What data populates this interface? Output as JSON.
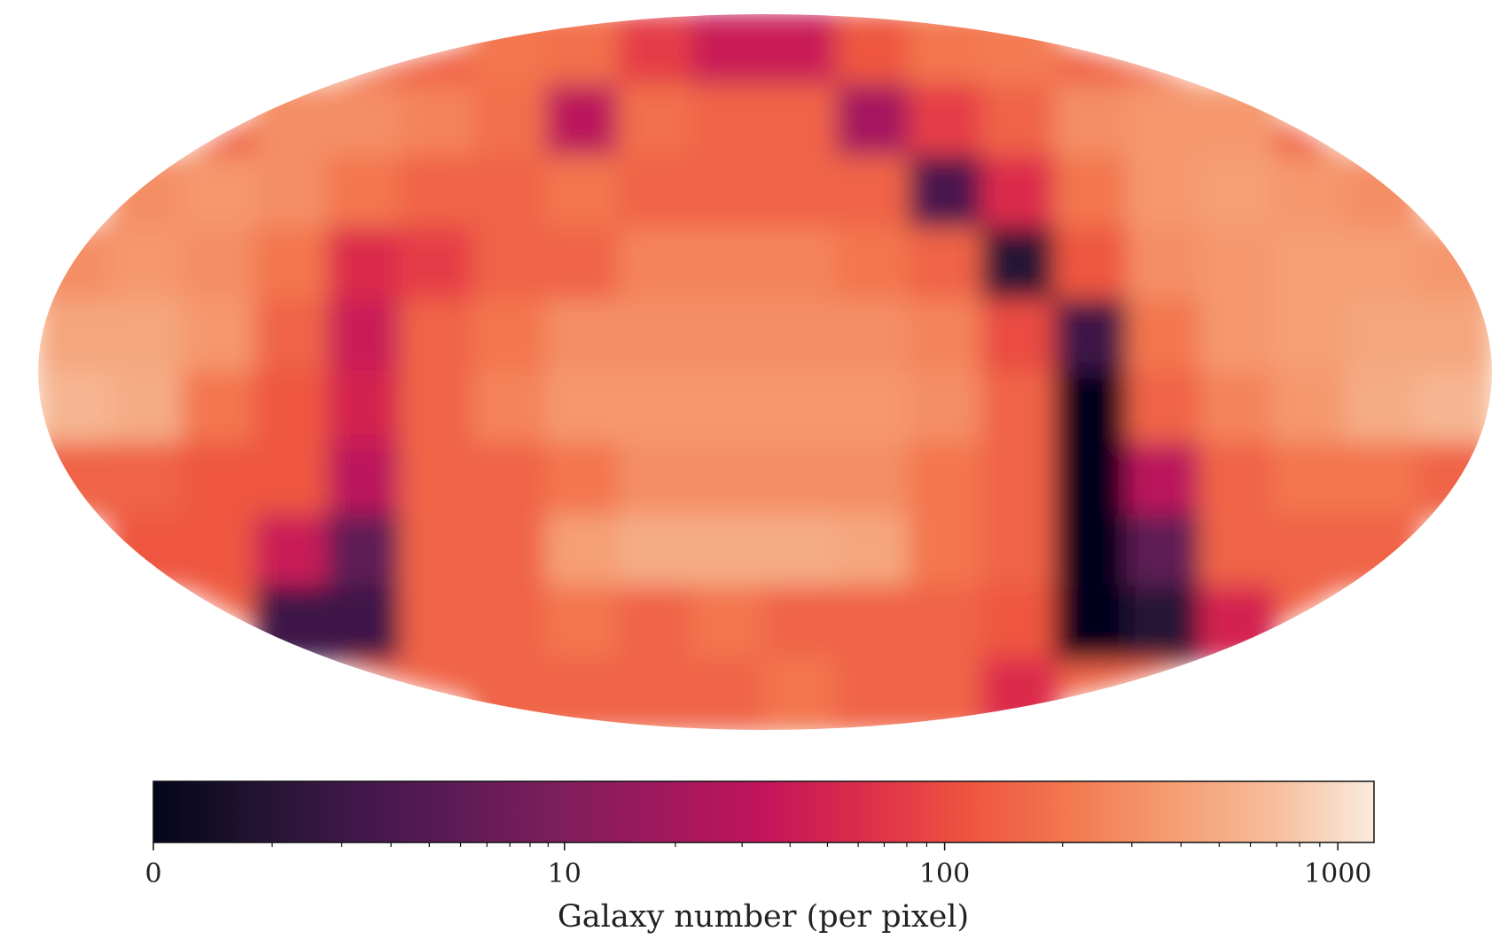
{
  "chart_data": {
    "type": "skymap",
    "projection": "mollweide",
    "values": [
      [
        null,
        null,
        null,
        null,
        null,
        null,
        200,
        180,
        80,
        40,
        40,
        120,
        200,
        220,
        null,
        null,
        null,
        null,
        null,
        null
      ],
      [
        null,
        null,
        null,
        300,
        300,
        250,
        180,
        30,
        180,
        150,
        150,
        20,
        80,
        150,
        300,
        350,
        350,
        null,
        null,
        null
      ],
      [
        null,
        300,
        350,
        300,
        200,
        150,
        150,
        200,
        150,
        150,
        150,
        150,
        3,
        60,
        200,
        350,
        400,
        350,
        300,
        null
      ],
      [
        300,
        350,
        300,
        200,
        60,
        80,
        150,
        150,
        250,
        250,
        250,
        200,
        150,
        1,
        120,
        300,
        350,
        400,
        400,
        350
      ],
      [
        450,
        450,
        350,
        150,
        40,
        150,
        200,
        300,
        300,
        300,
        300,
        300,
        250,
        100,
        2,
        200,
        350,
        400,
        450,
        450
      ],
      [
        600,
        500,
        200,
        120,
        50,
        150,
        250,
        350,
        350,
        350,
        350,
        350,
        300,
        150,
        0,
        150,
        250,
        350,
        500,
        600
      ],
      [
        150,
        150,
        120,
        120,
        30,
        150,
        150,
        200,
        300,
        300,
        300,
        300,
        200,
        150,
        0,
        30,
        150,
        200,
        200,
        150
      ],
      [
        null,
        120,
        120,
        40,
        5,
        150,
        150,
        400,
        500,
        500,
        500,
        450,
        200,
        150,
        0,
        5,
        150,
        150,
        150,
        null
      ],
      [
        null,
        null,
        null,
        2,
        2,
        150,
        150,
        200,
        150,
        200,
        150,
        150,
        150,
        120,
        0,
        1,
        50,
        null,
        null,
        null
      ],
      [
        null,
        null,
        null,
        null,
        null,
        null,
        150,
        150,
        150,
        150,
        200,
        150,
        150,
        60,
        null,
        null,
        null,
        null,
        null,
        null
      ]
    ],
    "colormap": [
      "#03051a",
      "#221331",
      "#40184a",
      "#5e1b55",
      "#7e1e5c",
      "#a0185e",
      "#c2145b",
      "#de2e4a",
      "#ee5440",
      "#f3784f",
      "#f59c72",
      "#f6bd9b",
      "#faebdd"
    ],
    "color_scale": "log1p",
    "clim": [
      0,
      1235
    ],
    "cticks": [
      0,
      10,
      100,
      1000
    ],
    "cminorticks": [
      1,
      2,
      3,
      4,
      5,
      6,
      7,
      8,
      9,
      20,
      30,
      40,
      50,
      60,
      70,
      80,
      90,
      200,
      300,
      400,
      500,
      600,
      700,
      800,
      900
    ],
    "clabel": "Galaxy number (per pixel)"
  }
}
